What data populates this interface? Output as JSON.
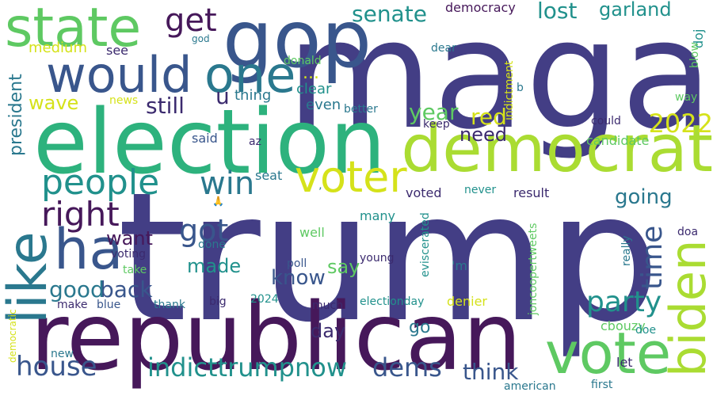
{
  "palette": {
    "background": "#ffffff",
    "indigo": "#433e85",
    "dark_purple": "#46185a",
    "deep_violet": "#3b2a6e",
    "blue": "#39568c",
    "teal": "#2a788e",
    "teal_green": "#21918c",
    "green": "#2db27d",
    "light_green": "#5ec962",
    "lime": "#aadc32",
    "yellow": "#d5e21a"
  },
  "words": [
    {
      "text": "trump",
      "color": "indigo"
    },
    {
      "text": "maga",
      "color": "indigo"
    },
    {
      "text": "republican",
      "color": "dark_purple"
    },
    {
      "text": "election",
      "color": "green"
    },
    {
      "text": "democrat",
      "color": "lime"
    },
    {
      "text": "vote",
      "color": "light_green"
    },
    {
      "text": "gop",
      "color": "blue"
    },
    {
      "text": "biden",
      "color": "lime"
    },
    {
      "text": "state",
      "color": "light_green"
    },
    {
      "text": "would",
      "color": "blue"
    },
    {
      "text": "like",
      "color": "teal"
    },
    {
      "text": "one",
      "color": "teal"
    },
    {
      "text": "ha",
      "color": "blue"
    },
    {
      "text": "voter",
      "color": "yellow"
    },
    {
      "text": "people",
      "color": "teal_green"
    },
    {
      "text": "right",
      "color": "dark_purple"
    },
    {
      "text": "party",
      "color": "teal_green"
    },
    {
      "text": "house",
      "color": "blue"
    },
    {
      "text": "indicttrumpnow",
      "color": "teal_green"
    },
    {
      "text": "dems",
      "color": "blue"
    },
    {
      "text": "get",
      "color": "dark_purple"
    },
    {
      "text": "win",
      "color": "teal"
    },
    {
      "text": "time",
      "color": "blue"
    },
    {
      "text": "got",
      "color": "blue"
    },
    {
      "text": "senate",
      "color": "teal_green"
    },
    {
      "text": "lost",
      "color": "teal_green"
    },
    {
      "text": "garland",
      "color": "teal_green"
    },
    {
      "text": "2022",
      "color": "yellow"
    },
    {
      "text": "year",
      "color": "light_green"
    },
    {
      "text": "red",
      "color": "yellow"
    },
    {
      "text": "need",
      "color": "deep_violet"
    },
    {
      "text": "going",
      "color": "teal"
    },
    {
      "text": "think",
      "color": "blue"
    },
    {
      "text": "back",
      "color": "blue"
    },
    {
      "text": "good",
      "color": "teal"
    },
    {
      "text": "know",
      "color": "blue"
    },
    {
      "text": "still",
      "color": "deep_violet"
    },
    {
      "text": "wave",
      "color": "yellow"
    },
    {
      "text": "president",
      "color": "teal"
    },
    {
      "text": "want",
      "color": "dark_purple"
    },
    {
      "text": "made",
      "color": "teal_green"
    },
    {
      "text": "say",
      "color": "light_green"
    },
    {
      "text": "day",
      "color": "deep_violet"
    },
    {
      "text": "go",
      "color": "teal"
    },
    {
      "text": "u",
      "color": "deep_violet"
    },
    {
      "text": "medium",
      "color": "yellow"
    },
    {
      "text": "democracy",
      "color": "dark_purple"
    },
    {
      "text": "doj",
      "color": "teal_green"
    },
    {
      "text": "see",
      "color": "deep_violet"
    },
    {
      "text": "thing",
      "color": "teal"
    },
    {
      "text": "...",
      "color": "yellow"
    },
    {
      "text": "clear",
      "color": "teal_green"
    },
    {
      "text": "even",
      "color": "teal"
    },
    {
      "text": "candidate",
      "color": "light_green"
    },
    {
      "text": "said",
      "color": "blue"
    },
    {
      "text": "az",
      "color": "deep_violet"
    },
    {
      "text": "seat",
      "color": "teal"
    },
    {
      "text": "voted",
      "color": "deep_violet"
    },
    {
      "text": "never",
      "color": "teal_green"
    },
    {
      "text": "result",
      "color": "deep_violet"
    },
    {
      "text": "many",
      "color": "teal_green"
    },
    {
      "text": "well",
      "color": "light_green"
    },
    {
      "text": "young",
      "color": "deep_violet"
    },
    {
      "text": "eviscerated",
      "color": "teal_green"
    },
    {
      "text": "joncoopertweets",
      "color": "light_green"
    },
    {
      "text": "really",
      "color": "teal"
    },
    {
      "text": "doa",
      "color": "deep_violet"
    },
    {
      "text": "'m",
      "color": "teal"
    },
    {
      "text": "poll",
      "color": "blue"
    },
    {
      "text": "done",
      "color": "teal"
    },
    {
      "text": "voting",
      "color": "deep_violet"
    },
    {
      "text": "take",
      "color": "light_green"
    },
    {
      "text": "make",
      "color": "deep_violet"
    },
    {
      "text": "blue",
      "color": "blue"
    },
    {
      "text": "thank",
      "color": "teal"
    },
    {
      "text": "big",
      "color": "deep_violet"
    },
    {
      "text": "2024",
      "color": "teal_green"
    },
    {
      "text": "much",
      "color": "deep_violet"
    },
    {
      "text": "electionday",
      "color": "teal_green"
    },
    {
      "text": "denier",
      "color": "yellow"
    },
    {
      "text": "cbouzy",
      "color": "light_green"
    },
    {
      "text": "doe",
      "color": "teal_green"
    },
    {
      "text": "let",
      "color": "deep_violet"
    },
    {
      "text": "first",
      "color": "teal"
    },
    {
      "text": "american",
      "color": "teal"
    },
    {
      "text": "new",
      "color": "teal"
    },
    {
      "text": "democratic",
      "color": "yellow"
    },
    {
      "text": "indictment",
      "color": "yellow"
    },
    {
      "text": "dear",
      "color": "teal"
    },
    {
      "text": "donald",
      "color": "light_green"
    },
    {
      "text": "god",
      "color": "teal"
    },
    {
      "text": "better",
      "color": "teal"
    },
    {
      "text": "keep",
      "color": "deep_violet"
    },
    {
      "text": "could",
      "color": "deep_violet"
    },
    {
      "text": "way",
      "color": "light_green"
    },
    {
      "text": "blow",
      "color": "light_green"
    },
    {
      "text": "b",
      "color": "teal"
    },
    {
      "text": "news",
      "color": "yellow"
    },
    {
      "text": "’",
      "color": "teal"
    },
    {
      "text": "🙏",
      "color": "teal"
    }
  ]
}
